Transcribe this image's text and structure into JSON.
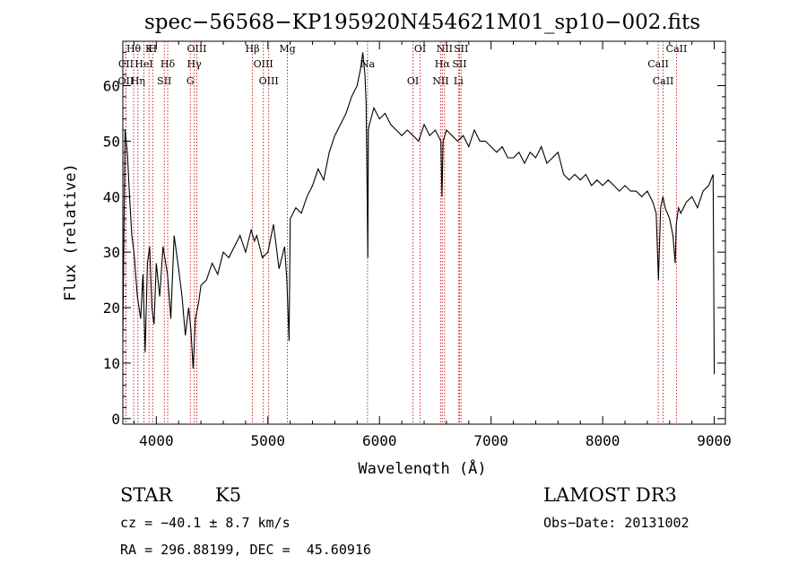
{
  "chart_data": {
    "type": "line",
    "title": "spec−56568−KP195920N454621M01_sp10−002.fits",
    "xlabel": "Wavelength (Å)",
    "ylabel": "Flux (relative)",
    "xlim": [
      3700,
      9100
    ],
    "ylim": [
      -1,
      68
    ],
    "xticks": [
      4000,
      5000,
      6000,
      7000,
      8000,
      9000
    ],
    "yticks": [
      0,
      10,
      20,
      30,
      40,
      50,
      60
    ],
    "grid": false,
    "series": [
      {
        "x": [
          3700,
          3720,
          3740,
          3760,
          3780,
          3800,
          3830,
          3860,
          3880,
          3900,
          3920,
          3940,
          3960,
          3980,
          4000,
          4030,
          4060,
          4100,
          4130,
          4160,
          4200,
          4230,
          4260,
          4290,
          4310,
          4330,
          4350,
          4380,
          4400,
          4450,
          4500,
          4550,
          4600,
          4650,
          4700,
          4750,
          4800,
          4850,
          4880,
          4900,
          4950,
          5000,
          5050,
          5100,
          5150,
          5170,
          5190,
          5200,
          5250,
          5300,
          5350,
          5400,
          5450,
          5500,
          5550,
          5600,
          5650,
          5700,
          5750,
          5800,
          5830,
          5850,
          5870,
          5880,
          5890,
          5895,
          5900,
          5910,
          5950,
          6000,
          6050,
          6100,
          6150,
          6200,
          6250,
          6300,
          6350,
          6400,
          6450,
          6500,
          6550,
          6560,
          6570,
          6600,
          6650,
          6700,
          6750,
          6800,
          6850,
          6900,
          6950,
          7000,
          7050,
          7100,
          7150,
          7200,
          7250,
          7300,
          7350,
          7400,
          7450,
          7500,
          7550,
          7600,
          7650,
          7700,
          7750,
          7800,
          7850,
          7900,
          7950,
          8000,
          8050,
          8100,
          8150,
          8200,
          8250,
          8300,
          8350,
          8400,
          8450,
          8480,
          8500,
          8520,
          8540,
          8560,
          8600,
          8630,
          8650,
          8660,
          8680,
          8700,
          8750,
          8800,
          8850,
          8900,
          8950,
          8990,
          9000
        ],
        "y": [
          15,
          52,
          48,
          40,
          33,
          30,
          22,
          18,
          26,
          12,
          28,
          31,
          20,
          17,
          28,
          22,
          31,
          26,
          18,
          33,
          27,
          22,
          15,
          20,
          16,
          9,
          18,
          21,
          24,
          25,
          28,
          26,
          30,
          29,
          31,
          33,
          30,
          34,
          32,
          33,
          29,
          30,
          35,
          27,
          31,
          25,
          14,
          36,
          38,
          37,
          40,
          42,
          45,
          43,
          48,
          51,
          53,
          55,
          58,
          60,
          63,
          66,
          62,
          57,
          40,
          29,
          52,
          53,
          56,
          54,
          55,
          53,
          52,
          51,
          52,
          51,
          50,
          53,
          51,
          52,
          50,
          40,
          50,
          52,
          51,
          50,
          51,
          49,
          52,
          50,
          50,
          49,
          48,
          49,
          47,
          47,
          48,
          46,
          48,
          47,
          49,
          46,
          47,
          48,
          44,
          43,
          44,
          43,
          44,
          42,
          43,
          42,
          43,
          42,
          41,
          42,
          41,
          41,
          40,
          41,
          39,
          37,
          25,
          38,
          40,
          38,
          36,
          33,
          28,
          35,
          38,
          37,
          39,
          40,
          38,
          41,
          42,
          44,
          8
        ]
      }
    ],
    "lines": [
      {
        "name": "Hθ",
        "w": 3797
      },
      {
        "name": "CII",
        "w": 3728
      },
      {
        "name": "OII",
        "w": 3727
      },
      {
        "name": "K",
        "w": 3934
      },
      {
        "name": "HeI",
        "w": 3889
      },
      {
        "name": "Hη",
        "w": 3835
      },
      {
        "name": "H",
        "w": 3968
      },
      {
        "name": "Hδ",
        "w": 4102
      },
      {
        "name": "SII",
        "w": 4072
      },
      {
        "name": "OIII",
        "w": 4363
      },
      {
        "name": "Hγ",
        "w": 4340
      },
      {
        "name": "G",
        "w": 4305
      },
      {
        "name": "Hβ",
        "w": 4861
      },
      {
        "name": "OIII",
        "w": 4959
      },
      {
        "name": "OIII",
        "w": 5007
      },
      {
        "name": "Mg",
        "w": 5175
      },
      {
        "name": "Na",
        "w": 5893
      },
      {
        "name": "OI",
        "w": 6300
      },
      {
        "name": "OI",
        "w": 6364
      },
      {
        "name": "Hα",
        "w": 6563
      },
      {
        "name": "NII",
        "w": 6548
      },
      {
        "name": "NII",
        "w": 6583
      },
      {
        "name": "SII",
        "w": 6717
      },
      {
        "name": "Li",
        "w": 6708
      },
      {
        "name": "SII",
        "w": 6731
      },
      {
        "name": "CaII",
        "w": 8498
      },
      {
        "name": "CaII",
        "w": 8542
      },
      {
        "name": "CaII",
        "w": 8662
      }
    ]
  },
  "info": {
    "class": "STAR",
    "subclass": "K5",
    "survey": "LAMOST DR3",
    "cz": "cz = −40.1 ± 8.7 km/s",
    "obs_date": "Obs−Date: 20131002",
    "coords": "RA = 296.88199, DEC =  45.60916"
  }
}
